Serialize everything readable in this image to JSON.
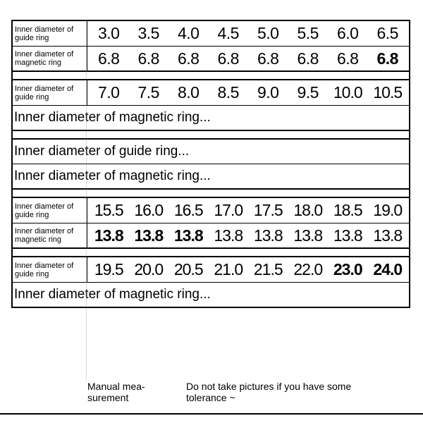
{
  "labels": {
    "guide": "Inner diameter of guide ring",
    "magnetic": "Inner diameter of magnetic ring",
    "guide_trunc": "Inner diameter of guide ring...",
    "magnetic_trunc": "Inner diameter of magnetic ring..."
  },
  "block1": {
    "guide": [
      "3.0",
      "3.5",
      "4.0",
      "4.5",
      "5.0",
      "5.5",
      "6.0",
      "6.5"
    ],
    "magnetic": [
      "6.8",
      "6.8",
      "6.8",
      "6.8",
      "6.8",
      "6.8",
      "6.8",
      "6.8"
    ],
    "magnetic_bold": [
      false,
      false,
      false,
      false,
      false,
      false,
      false,
      true
    ]
  },
  "block2": {
    "guide": [
      "7.0",
      "7.5",
      "8.0",
      "8.5",
      "9.0",
      "9.5",
      "10.0",
      "10.5"
    ]
  },
  "block4": {
    "guide": [
      "15.5",
      "16.0",
      "16.5",
      "17.0",
      "17.5",
      "18.0",
      "18.5",
      "19.0"
    ],
    "magnetic": [
      "13.8",
      "13.8",
      "13.8",
      "13.8",
      "13.8",
      "13.8",
      "13.8",
      "13.8"
    ],
    "magnetic_bold": [
      true,
      true,
      true,
      false,
      false,
      false,
      false,
      false
    ]
  },
  "block5": {
    "guide": [
      "19.5",
      "20.0",
      "20.5",
      "21.0",
      "21.5",
      "22.0",
      "23.0",
      "24.0"
    ],
    "guide_bold": [
      false,
      false,
      false,
      false,
      false,
      false,
      true,
      true
    ]
  },
  "footer": {
    "left": "Manual mea-\nsurement",
    "right": "Do not take pictures if you have some tolerance ~"
  },
  "style": {
    "value_fontsize": 23,
    "label_fontsize": 11,
    "full_fontsize": 19,
    "footer_fontsize": 14,
    "text_color": "#000000",
    "bg_color": "#ffffff",
    "border_color": "#000000"
  }
}
